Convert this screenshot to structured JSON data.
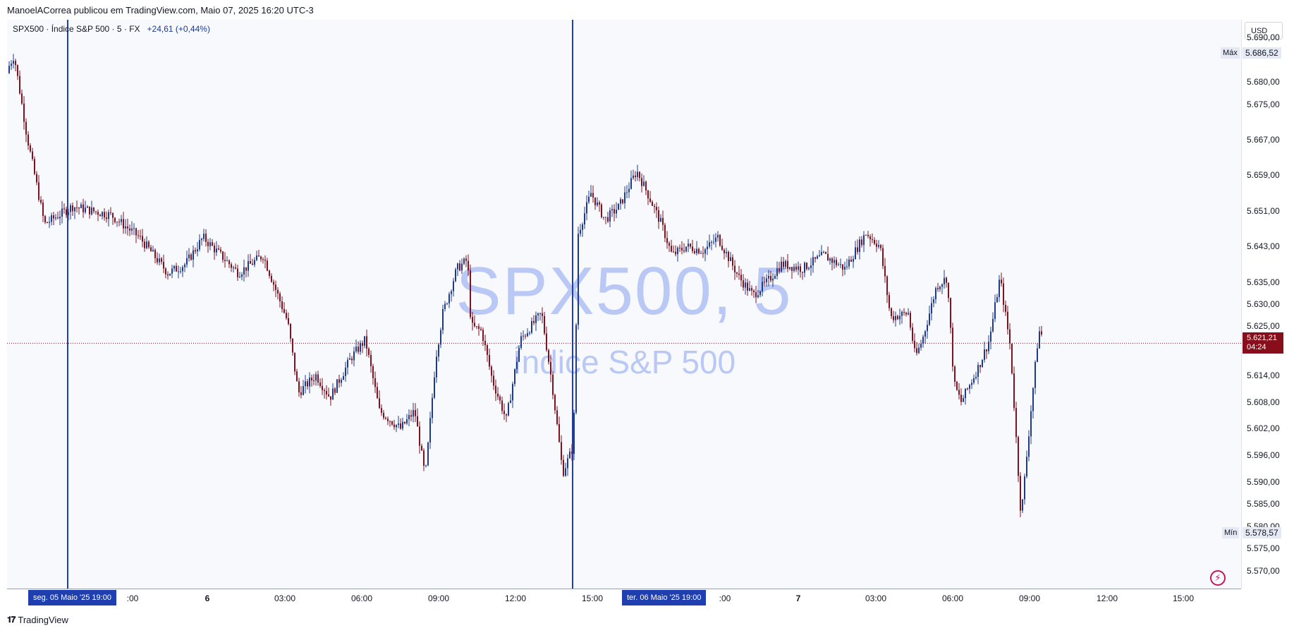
{
  "header": {
    "publisher_text": "ManoelACorrea publicou em TradingView.com, Maio 07, 2025 16:20 UTC-3"
  },
  "legend": {
    "symbol_line": "SPX500 · Índice S&P 500 · 5 · FX",
    "change": "+24,61 (+0,44%)"
  },
  "watermark": {
    "symbol": "SPX500, 5",
    "description": "Índice S&P 500"
  },
  "price_scale": {
    "currency": "USD",
    "ticks": [
      "5.690,00",
      "5.680,00",
      "5.675,00",
      "5.667,00",
      "5.659,00",
      "5.651,00",
      "5.643,00",
      "5.635,00",
      "5.630,00",
      "5.625,00",
      "5.614,00",
      "5.608,00",
      "5.602,00",
      "5.596,00",
      "5.590,00",
      "5.585,00",
      "5.580,00",
      "5.575,00",
      "5.570,00"
    ],
    "high_label": "Máx",
    "high_value": "5.686,52",
    "low_label": "Mín",
    "low_value": "5.578,57",
    "last_price": "5.621,21",
    "countdown": "04:24"
  },
  "time_scale": {
    "ticks": [
      {
        "text": ":00"
      },
      {
        "text": "6"
      },
      {
        "text": "03:00"
      },
      {
        "text": "06:00"
      },
      {
        "text": "09:00"
      },
      {
        "text": "12:00"
      },
      {
        "text": "15:00"
      },
      {
        "text": ":00"
      },
      {
        "text": "7"
      },
      {
        "text": "03:00"
      },
      {
        "text": "06:00"
      },
      {
        "text": "09:00"
      },
      {
        "text": "12:00"
      },
      {
        "text": "15:00"
      }
    ],
    "session_labels": [
      "seg. 05 Maio '25   19:00",
      "ter. 06 Maio '25   19:00"
    ]
  },
  "footer": {
    "brand": "TradingView"
  },
  "colors": {
    "up": "#1e3a8a",
    "down": "#7f1120",
    "session_line": "#1f3fb0",
    "last_price": "#880e1b"
  },
  "chart_data": {
    "type": "candlestick",
    "ylim": [
      5566,
      5694
    ],
    "last": 5621.21,
    "high": 5686.52,
    "low": 5578.57,
    "anchors": [
      [
        0,
        5682
      ],
      [
        12,
        5686
      ],
      [
        30,
        5668
      ],
      [
        55,
        5648
      ],
      [
        95,
        5652
      ],
      [
        150,
        5650
      ],
      [
        190,
        5645
      ],
      [
        230,
        5637
      ],
      [
        255,
        5639
      ],
      [
        280,
        5645
      ],
      [
        330,
        5637
      ],
      [
        365,
        5641
      ],
      [
        400,
        5626
      ],
      [
        415,
        5610
      ],
      [
        440,
        5614
      ],
      [
        460,
        5609
      ],
      [
        490,
        5618
      ],
      [
        510,
        5622
      ],
      [
        530,
        5606
      ],
      [
        560,
        5602
      ],
      [
        580,
        5606
      ],
      [
        595,
        5591
      ],
      [
        610,
        5618
      ],
      [
        620,
        5628
      ],
      [
        640,
        5638
      ],
      [
        655,
        5640
      ],
      [
        660,
        5625
      ],
      [
        675,
        5624
      ],
      [
        690,
        5613
      ],
      [
        710,
        5604
      ],
      [
        730,
        5622
      ],
      [
        760,
        5628
      ],
      [
        775,
        5612
      ],
      [
        790,
        5592
      ],
      [
        805,
        5598
      ],
      [
        812,
        5646
      ],
      [
        830,
        5655
      ],
      [
        850,
        5649
      ],
      [
        870,
        5652
      ],
      [
        895,
        5660
      ],
      [
        910,
        5655
      ],
      [
        930,
        5648
      ],
      [
        945,
        5641
      ],
      [
        965,
        5643
      ],
      [
        990,
        5642
      ],
      [
        1010,
        5645
      ],
      [
        1040,
        5636
      ],
      [
        1060,
        5632
      ],
      [
        1080,
        5635
      ],
      [
        1100,
        5639
      ],
      [
        1130,
        5638
      ],
      [
        1160,
        5641
      ],
      [
        1190,
        5638
      ],
      [
        1220,
        5646
      ],
      [
        1240,
        5643
      ],
      [
        1255,
        5627
      ],
      [
        1280,
        5628
      ],
      [
        1290,
        5618
      ],
      [
        1300,
        5622
      ],
      [
        1320,
        5634
      ],
      [
        1335,
        5636
      ],
      [
        1345,
        5612
      ],
      [
        1355,
        5608
      ],
      [
        1380,
        5616
      ],
      [
        1395,
        5622
      ],
      [
        1410,
        5636
      ],
      [
        1425,
        5620
      ],
      [
        1440,
        5582
      ],
      [
        1455,
        5608
      ],
      [
        1465,
        5624
      ],
      [
        1475,
        5622
      ]
    ]
  }
}
